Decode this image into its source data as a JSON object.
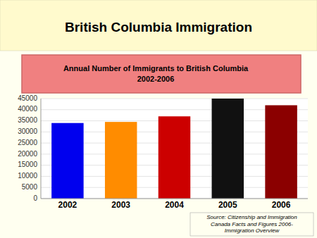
{
  "chart_data": {
    "type": "bar",
    "title": "British Columbia Immigration",
    "subtitle": "Annual Number of Immigrants to British Columbia\n2002-2006",
    "categories": [
      "2002",
      "2003",
      "2004",
      "2005",
      "2006"
    ],
    "values": [
      34000,
      34500,
      37000,
      45000,
      42000
    ],
    "colors": [
      "#0000EE",
      "#FF8C00",
      "#CC0000",
      "#111111",
      "#8B0000"
    ],
    "ylim": [
      0,
      45000
    ],
    "yticks": [
      0,
      5000,
      10000,
      15000,
      20000,
      25000,
      30000,
      35000,
      40000,
      45000
    ],
    "grid": true,
    "annotations": [
      "Source: Citizenship and Immigration\nCanada Facts and Figures 2006-\nImmigration Overview"
    ]
  }
}
